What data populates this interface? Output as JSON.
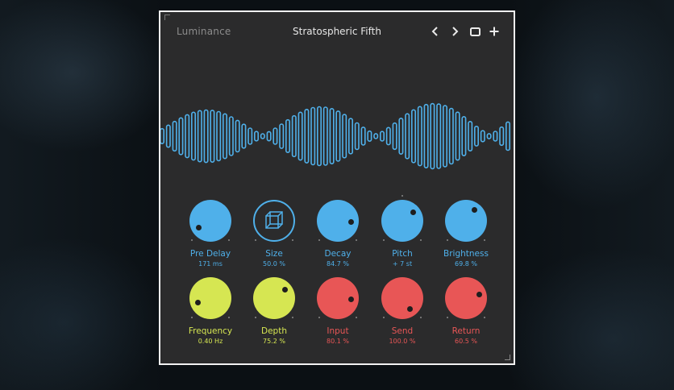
{
  "header": {
    "brand": "Luminance",
    "preset_name": "Stratospheric Fifth",
    "prev_icon": "chevron-left-icon",
    "next_icon": "chevron-right-icon",
    "window_icon": "window-icon",
    "add_icon": "plus-icon"
  },
  "colors": {
    "blue": "#4fb0ea",
    "yellow": "#d6e652",
    "red": "#e85656",
    "panel": "#2b2b2c"
  },
  "knobs": [
    {
      "label": "Pre Delay",
      "value": "171 ms",
      "color": "blue"
    },
    {
      "label": "Size",
      "value": "50.0 %",
      "color": "blue",
      "icon": "cube-icon"
    },
    {
      "label": "Decay",
      "value": "84.7 %",
      "color": "blue"
    },
    {
      "label": "Pitch",
      "value": "+ 7 st",
      "color": "blue"
    },
    {
      "label": "Brightness",
      "value": "69.8 %",
      "color": "blue"
    },
    {
      "label": "Frequency",
      "value": "0.40 Hz",
      "color": "yellow"
    },
    {
      "label": "Depth",
      "value": "75.2 %",
      "color": "yellow"
    },
    {
      "label": "Input",
      "value": "80.1 %",
      "color": "red"
    },
    {
      "label": "Send",
      "value": "100.0 %",
      "color": "red"
    },
    {
      "label": "Return",
      "value": "60.5 %",
      "color": "red"
    }
  ]
}
